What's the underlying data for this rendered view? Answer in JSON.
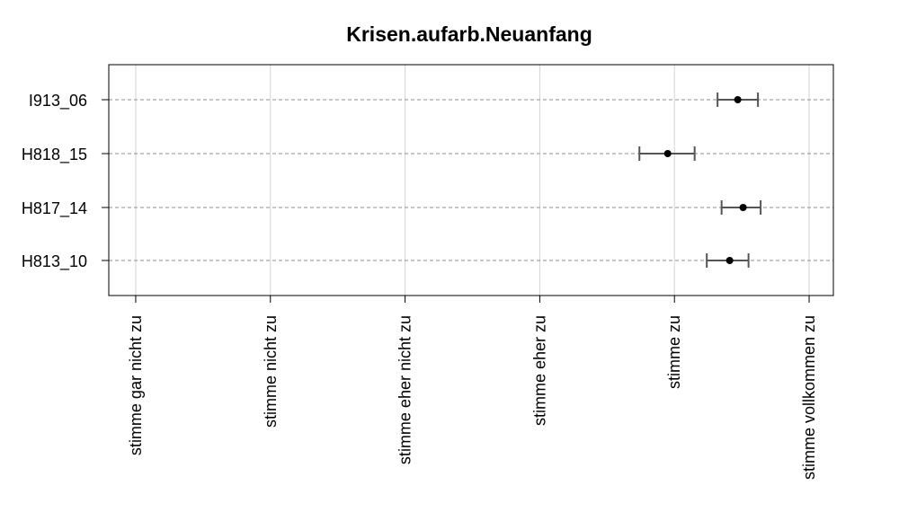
{
  "chart_data": {
    "type": "scatter",
    "title": "Krisen.aufarb.Neuanfang",
    "xlabel": "",
    "ylabel": "",
    "x_categories": [
      "stimme gar nicht zu",
      "stimme nicht zu",
      "stimme eher nicht zu",
      "stimme eher zu",
      "stimme zu",
      "stimme vollkommen zu"
    ],
    "xlim": [
      0.8,
      6.18
    ],
    "grid": true,
    "items": [
      {
        "label": "I913_06",
        "mean": 5.47,
        "lower": 5.32,
        "upper": 5.62
      },
      {
        "label": "H818_15",
        "mean": 4.95,
        "lower": 4.74,
        "upper": 5.15
      },
      {
        "label": "H817_14",
        "mean": 5.51,
        "lower": 5.35,
        "upper": 5.64
      },
      {
        "label": "H813_10",
        "mean": 5.41,
        "lower": 5.24,
        "upper": 5.55
      }
    ]
  }
}
